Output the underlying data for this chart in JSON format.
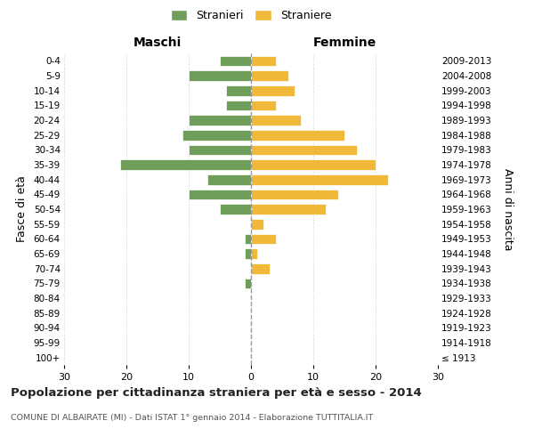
{
  "age_groups": [
    "100+",
    "95-99",
    "90-94",
    "85-89",
    "80-84",
    "75-79",
    "70-74",
    "65-69",
    "60-64",
    "55-59",
    "50-54",
    "45-49",
    "40-44",
    "35-39",
    "30-34",
    "25-29",
    "20-24",
    "15-19",
    "10-14",
    "5-9",
    "0-4"
  ],
  "birth_years": [
    "≤ 1913",
    "1914-1918",
    "1919-1923",
    "1924-1928",
    "1929-1933",
    "1934-1938",
    "1939-1943",
    "1944-1948",
    "1949-1953",
    "1954-1958",
    "1959-1963",
    "1964-1968",
    "1969-1973",
    "1974-1978",
    "1979-1983",
    "1984-1988",
    "1989-1993",
    "1994-1998",
    "1999-2003",
    "2004-2008",
    "2009-2013"
  ],
  "males": [
    0,
    0,
    0,
    0,
    0,
    1,
    0,
    1,
    1,
    0,
    5,
    10,
    7,
    21,
    10,
    11,
    10,
    4,
    4,
    10,
    5
  ],
  "females": [
    0,
    0,
    0,
    0,
    0,
    0,
    3,
    1,
    4,
    2,
    12,
    14,
    22,
    20,
    17,
    15,
    8,
    4,
    7,
    6,
    4
  ],
  "male_color": "#6f9e5a",
  "female_color": "#f0b93a",
  "title": "Popolazione per cittadinanza straniera per età e sesso - 2014",
  "subtitle": "COMUNE DI ALBAIRATE (MI) - Dati ISTAT 1° gennaio 2014 - Elaborazione TUTTITALIA.IT",
  "xlabel_left": "Maschi",
  "xlabel_right": "Femmine",
  "ylabel_left": "Fasce di età",
  "ylabel_right": "Anni di nascita",
  "legend_males": "Stranieri",
  "legend_females": "Straniere",
  "xlim": 30,
  "background_color": "#ffffff",
  "grid_color": "#cccccc",
  "center_line_color": "#999999"
}
